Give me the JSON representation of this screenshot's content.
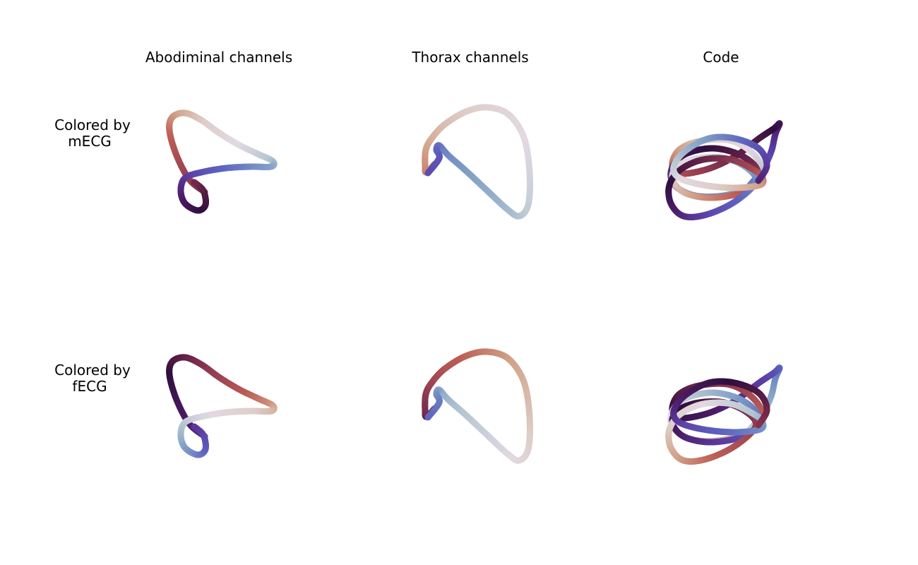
{
  "columns": [
    {
      "title": "Abodiminal channels"
    },
    {
      "title": "Thorax channels"
    },
    {
      "title": "Code"
    }
  ],
  "rows": [
    {
      "label_line1": "Colored by",
      "label_line2": "mECG"
    },
    {
      "label_line1": "Colored by",
      "label_line2": "fECG"
    }
  ],
  "palette": {
    "twilight": [
      "#e2d9e2",
      "#b4c6d1",
      "#7c9bc5",
      "#5d63c0",
      "#5b3aa0",
      "#4a1a62",
      "#2f0f3d",
      "#5e1f47",
      "#923b51",
      "#bb5c55",
      "#d1a086",
      "#ddcec9",
      "#e2d9e2"
    ]
  }
}
